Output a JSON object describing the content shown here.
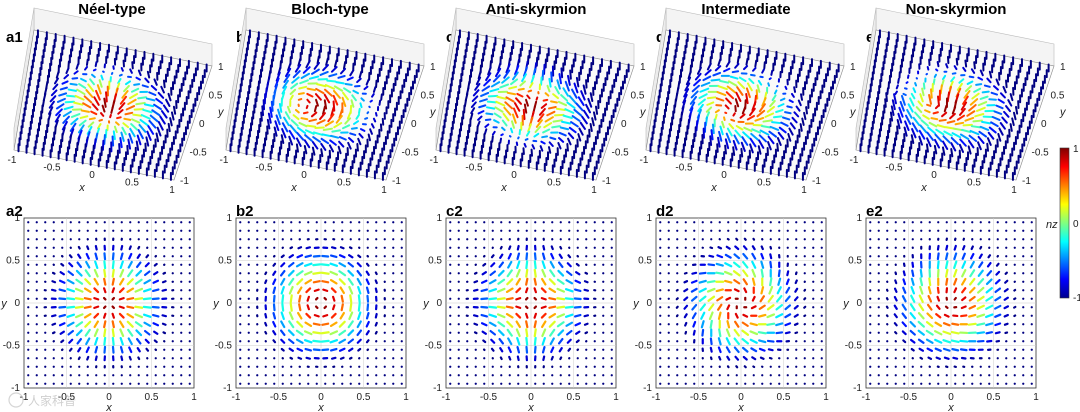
{
  "panels": [
    {
      "title": "Néel-type",
      "top_label": "a1",
      "bottom_label": "a2",
      "mode": "neel",
      "rot": 0
    },
    {
      "title": "Bloch-type",
      "top_label": "b1",
      "bottom_label": "b2",
      "mode": "bloch",
      "rot": 0
    },
    {
      "title": "Anti-skyrmion",
      "top_label": "c1",
      "bottom_label": "c2",
      "mode": "anti",
      "rot": 0
    },
    {
      "title": "Intermediate",
      "top_label": "d1",
      "bottom_label": "d2",
      "mode": "inter",
      "rot": 45
    },
    {
      "title": "Non-skyrmion",
      "top_label": "e1",
      "bottom_label": "e2",
      "mode": "non",
      "rot": 0
    }
  ],
  "axes": {
    "x_label": "x",
    "y_label": "y",
    "ticks_2d": [
      "-1",
      "-0.5",
      "0",
      "0.5",
      "1"
    ],
    "ticks_3d": [
      "-1",
      "-0.5",
      "0",
      "0.5",
      "1"
    ]
  },
  "colorbar": {
    "label": "nz",
    "max_label": "1",
    "mid_label": "0",
    "min_label": "-1",
    "colormap": [
      "#00008f",
      "#0000ff",
      "#0080ff",
      "#00ffff",
      "#80ff80",
      "#ffff00",
      "#ff8000",
      "#ff0000",
      "#800000"
    ]
  },
  "watermark": "人家科普"
}
